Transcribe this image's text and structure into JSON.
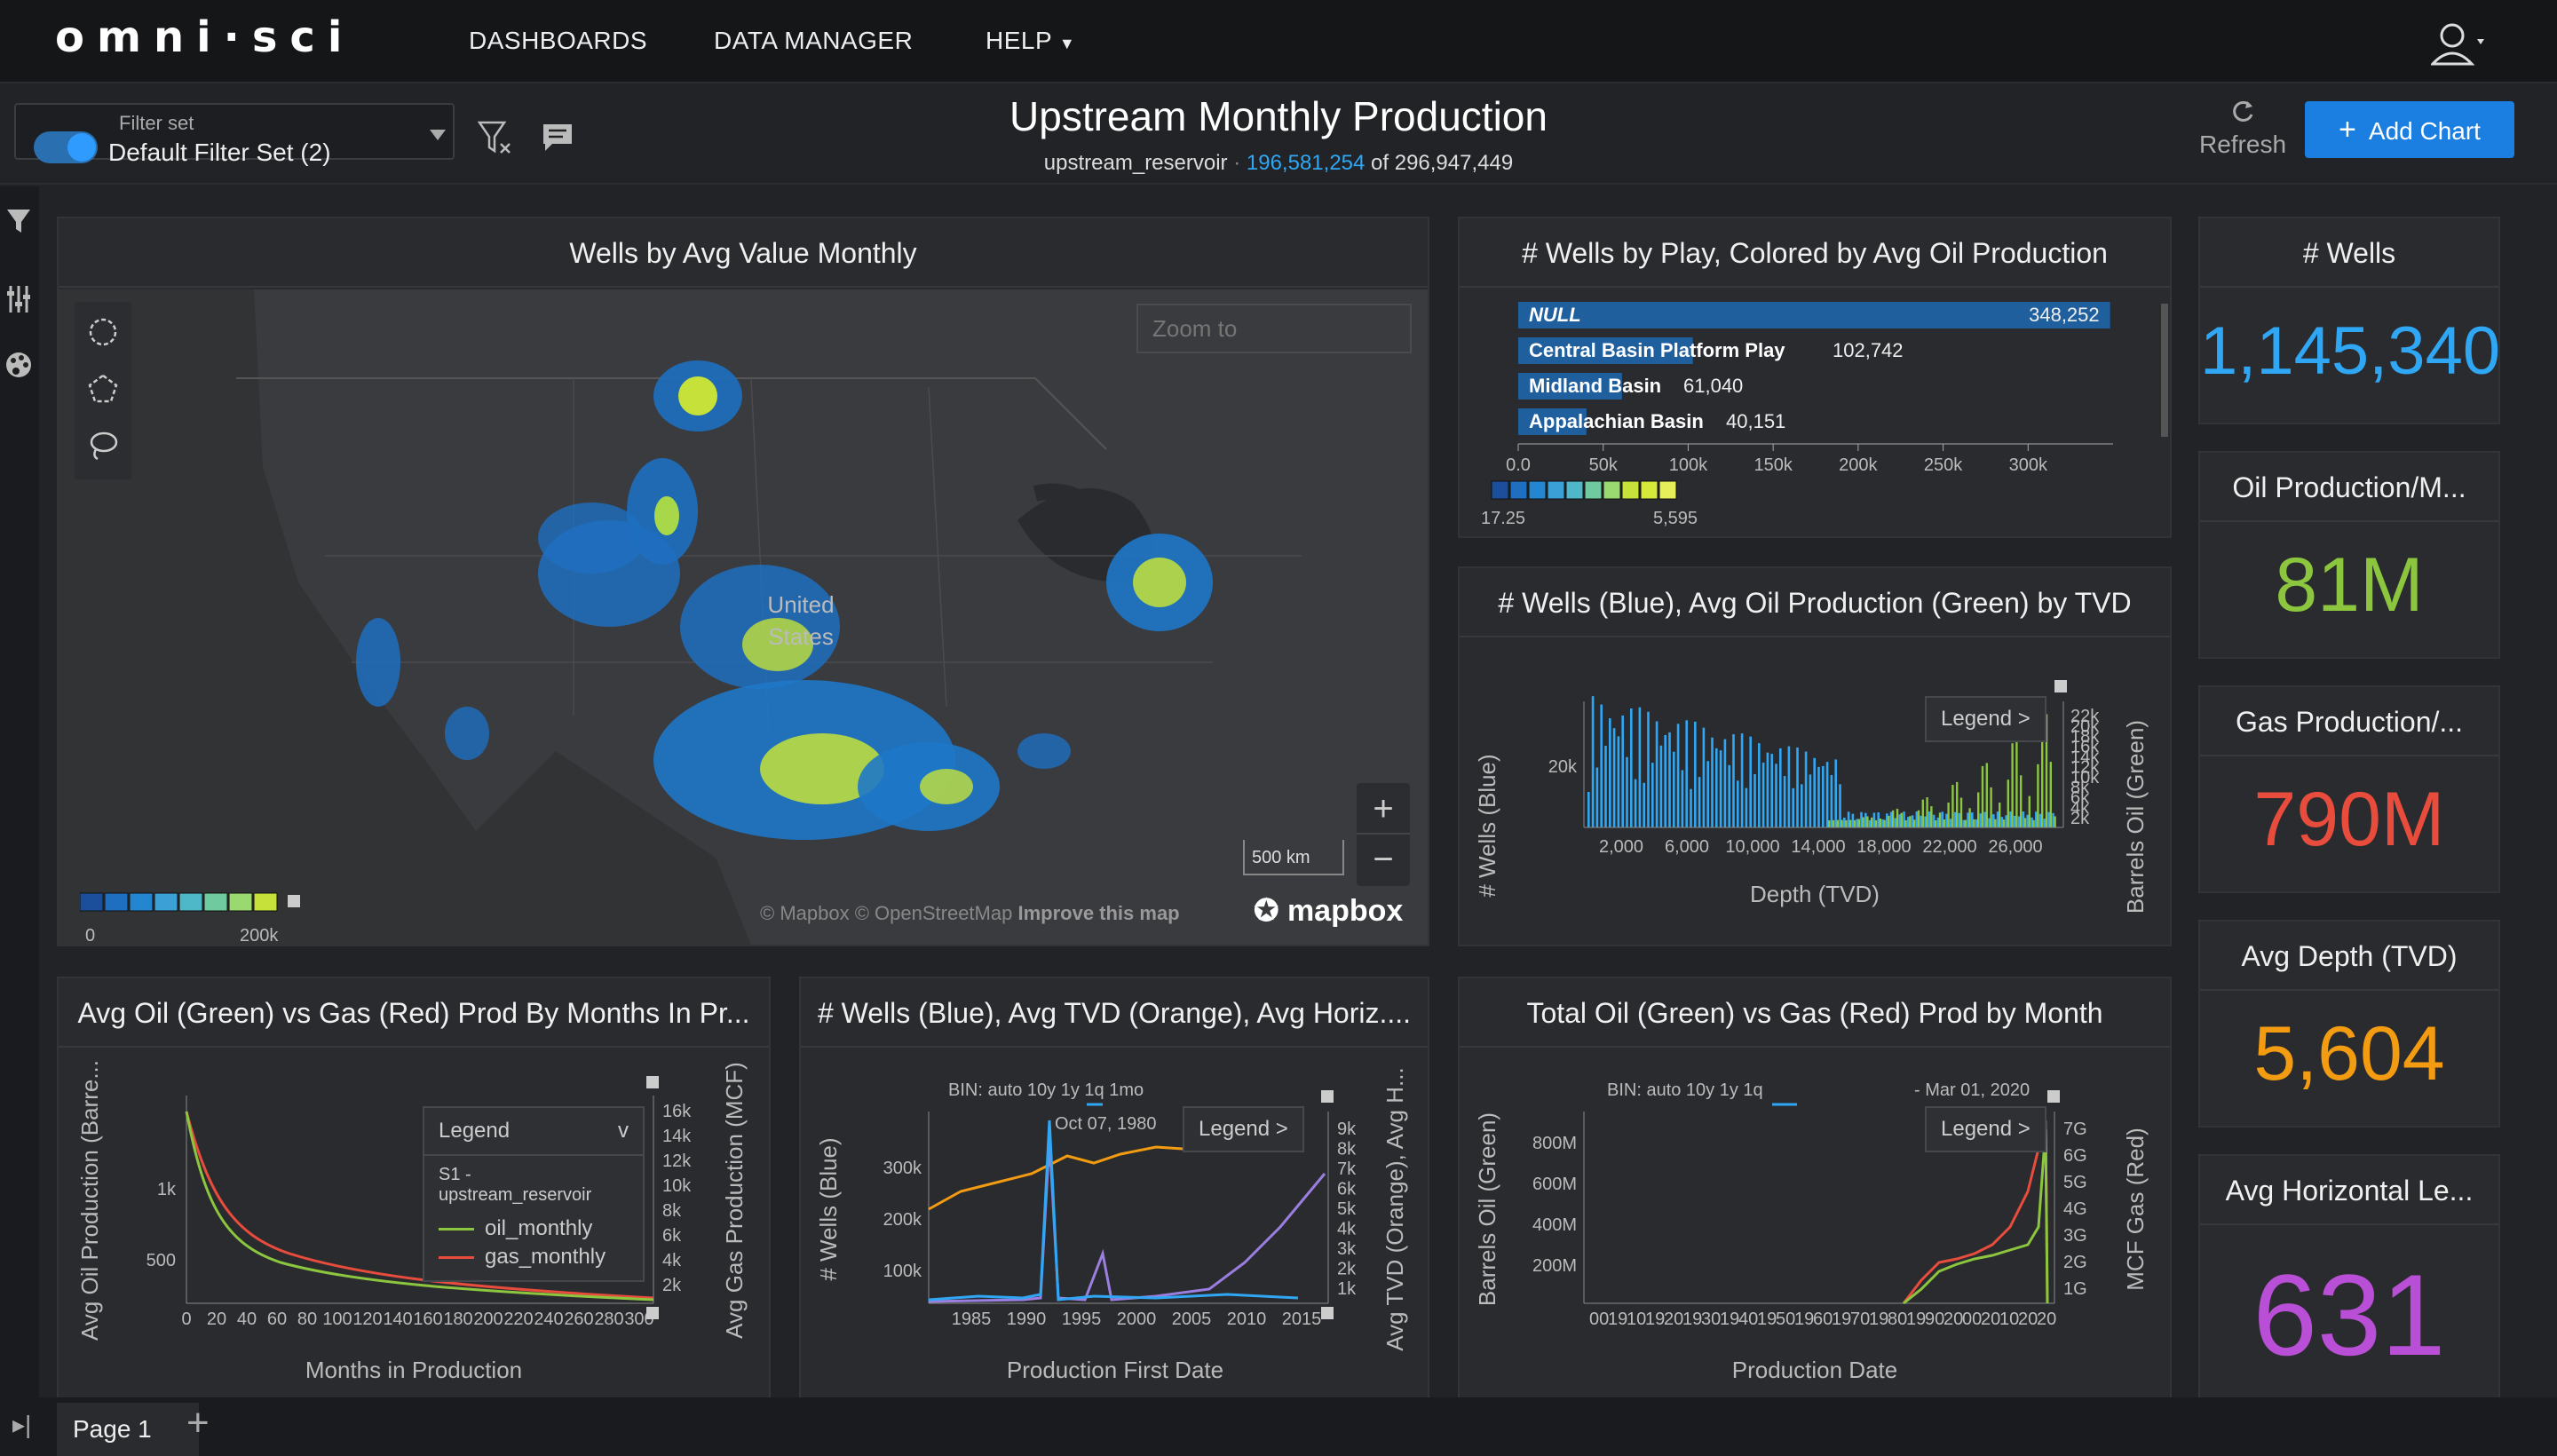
{
  "nav": {
    "logo": "omni·sci",
    "items": [
      "DASHBOARDS",
      "DATA MANAGER",
      "HELP"
    ]
  },
  "filter": {
    "label": "Filter set",
    "value": "Default Filter Set (2)"
  },
  "dashboard": {
    "title": "Upstream Monthly Production",
    "table": "upstream_reservoir",
    "filtered": "196,581,254",
    "total_text": "of 296,947,449"
  },
  "actions": {
    "refresh": "Refresh",
    "add_chart": "Add Chart"
  },
  "colors": {
    "accent": "#1a7fe0",
    "blue": "#2fa7f5",
    "green": "#8cc63f",
    "red": "#e74c3c",
    "orange": "#f39c12",
    "purple": "#b94fd6"
  },
  "map": {
    "title": "Wells by Avg Value Monthly",
    "zoom_placeholder": "Zoom to",
    "country": "United",
    "country2": "States",
    "scale": "500 km",
    "legend_min": "0",
    "legend_max": "200k",
    "attribution": "© Mapbox  © OpenStreetMap",
    "improve": "Improve this map",
    "brand": "mapbox"
  },
  "wells_by_play": {
    "title": "# Wells by Play, Colored by Avg Oil Production",
    "legend_min": "17.25",
    "legend_max": "5,595"
  },
  "tvd_chart": {
    "title": "# Wells (Blue), Avg Oil Production (Green) by TVD",
    "xlabel": "Depth (TVD)",
    "ylabel": "# Wells (Blue)",
    "y2label": "Barrels Oil (Green)",
    "legend": "Legend >"
  },
  "months_chart": {
    "title": "Avg Oil (Green) vs Gas (Red) Prod By Months In Pr...",
    "xlabel": "Months in Production",
    "ylabel": "Avg Oil Production (Barre...",
    "y2label": "Avg Gas Production (MCF)",
    "legend": "Legend",
    "legend_source": "S1 - upstream_reservoir",
    "series": [
      "oil_monthly",
      "gas_monthly"
    ]
  },
  "first_date_chart": {
    "title": "# Wells (Blue), Avg TVD (Orange), Avg Horiz....",
    "xlabel": "Production First Date",
    "ylabel": "# Wells (Blue)",
    "y2label": "Avg TVD (Orange), Avg H...",
    "bin": "BIN: auto  10y  1y  1q  1mo",
    "marker": "Oct 07, 1980",
    "legend": "Legend >"
  },
  "total_chart": {
    "title": "Total Oil (Green) vs Gas (Red) Prod by Month",
    "xlabel": "Production Date",
    "ylabel": "Barrels Oil (Green)",
    "y2label": "MCF Gas (Red)",
    "bin": "BIN: auto  10y  1y  1q",
    "marker": "- Mar 01, 2020",
    "legend": "Legend >"
  },
  "kpis": [
    {
      "title": "# Wells",
      "value": "1,145,340",
      "color": "#2fa7f5"
    },
    {
      "title": "Oil Production/M...",
      "value": "81M",
      "color": "#8cc63f"
    },
    {
      "title": "Gas Production/...",
      "value": "790M",
      "color": "#e74c3c"
    },
    {
      "title": "Avg Depth (TVD)",
      "value": "5,604",
      "color": "#f39c12"
    },
    {
      "title": "Avg Horizontal Le...",
      "value": "631",
      "color": "#b94fd6"
    }
  ],
  "page": {
    "tab": "Page 1"
  },
  "chart_data": [
    {
      "type": "bar",
      "title": "# Wells by Play, Colored by Avg Oil Production",
      "categories": [
        "NULL",
        "Central Basin Platform Play",
        "Midland Basin",
        "Appalachian Basin"
      ],
      "values": [
        348252,
        102742,
        61040,
        40151
      ],
      "labels": [
        "348,252",
        "102,742",
        "61,040",
        "40,151"
      ],
      "ticks": [
        "0.0",
        "50k",
        "100k",
        "150k",
        "200k",
        "250k",
        "300k"
      ],
      "xlim": [
        0,
        350000
      ]
    },
    {
      "type": "bar",
      "title": "# Wells (Blue), Avg Oil Production (Green) by TVD",
      "x_ticks": [
        "2,000",
        "6,000",
        "10,000",
        "14,000",
        "18,000",
        "22,000",
        "26,000"
      ],
      "y_ticks": [
        "20k"
      ],
      "y2_ticks": [
        "2k",
        "4k",
        "6k",
        "8k",
        "10k",
        "12k",
        "14k",
        "16k",
        "18k",
        "20k",
        "22k"
      ]
    },
    {
      "type": "line",
      "title": "Avg Oil (Green) vs Gas (Red) Prod By Months In Pr...",
      "x_ticks": [
        "0",
        "20",
        "40",
        "60",
        "80",
        "100",
        "120",
        "140",
        "160",
        "180",
        "200",
        "220",
        "240",
        "260",
        "280",
        "300"
      ],
      "y_ticks": [
        "500",
        "1k"
      ],
      "y2_ticks": [
        "2k",
        "4k",
        "6k",
        "8k",
        "10k",
        "12k",
        "14k",
        "16k"
      ]
    },
    {
      "type": "line",
      "title": "# Wells (Blue), Avg TVD (Orange), Avg Horiz....",
      "x_ticks": [
        "1985",
        "1990",
        "1995",
        "2000",
        "2005",
        "2010",
        "2015"
      ],
      "y_ticks": [
        "100k",
        "200k",
        "300k"
      ],
      "y2_ticks": [
        "1k",
        "2k",
        "3k",
        "4k",
        "5k",
        "6k",
        "7k",
        "8k",
        "9k"
      ]
    },
    {
      "type": "line",
      "title": "Total Oil (Green) vs Gas (Red) Prod by Month",
      "x_ticks": [
        "00",
        "19",
        "10",
        "19",
        "20",
        "19",
        "30",
        "19",
        "40",
        "19",
        "50",
        "19",
        "60",
        "19",
        "70",
        "19",
        "80",
        "19",
        "90",
        "20",
        "00",
        "20",
        "10",
        "20",
        "20"
      ],
      "y_ticks": [
        "200M",
        "400M",
        "600M",
        "800M"
      ],
      "y2_ticks": [
        "1G",
        "2G",
        "3G",
        "4G",
        "5G",
        "6G",
        "7G"
      ]
    }
  ]
}
